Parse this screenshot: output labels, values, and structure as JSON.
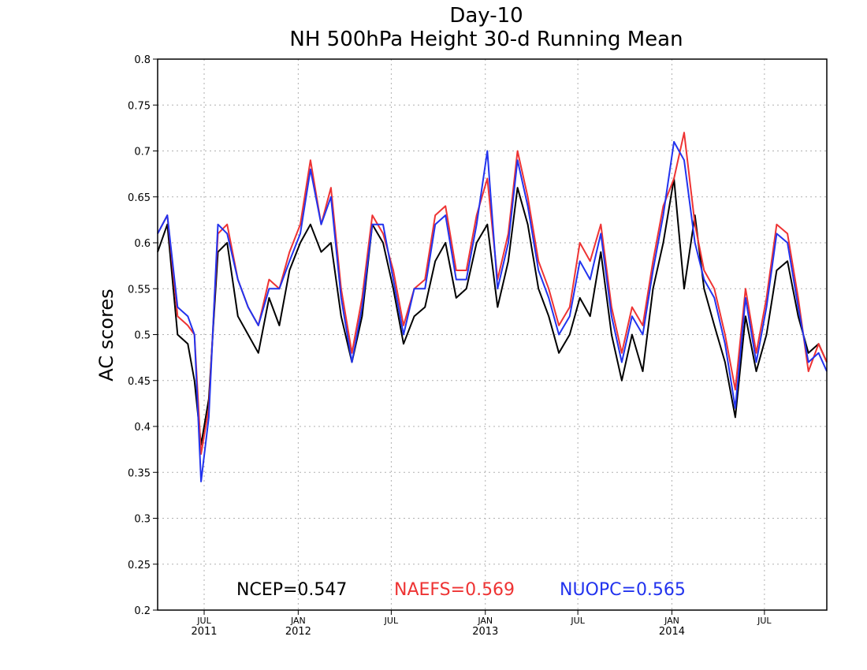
{
  "chart_data": {
    "type": "line",
    "title": "Day-10",
    "subtitle": "NH 500hPa Height 30-d Running Mean",
    "xlabel": "",
    "ylabel": "AC scores",
    "ylim": [
      0.2,
      0.8
    ],
    "yticks": [
      0.2,
      0.25,
      0.3,
      0.35,
      0.4,
      0.45,
      0.5,
      0.55,
      0.6,
      0.65,
      0.7,
      0.75,
      0.8
    ],
    "xlim": [
      "2011-04-01",
      "2014-10-31"
    ],
    "xticks": [
      {
        "date": "2011-07-01",
        "label": "JUL",
        "year": "2011"
      },
      {
        "date": "2012-01-01",
        "label": "JAN",
        "year": "2012"
      },
      {
        "date": "2012-07-01",
        "label": "JUL",
        "year": ""
      },
      {
        "date": "2013-01-01",
        "label": "JAN",
        "year": "2013"
      },
      {
        "date": "2013-07-01",
        "label": "JUL",
        "year": ""
      },
      {
        "date": "2014-01-01",
        "label": "JAN",
        "year": "2014"
      },
      {
        "date": "2014-07-01",
        "label": "JUL",
        "year": ""
      }
    ],
    "grid": true,
    "legend_position": "bottom",
    "x": [
      "2011-04-01",
      "2011-04-20",
      "2011-05-10",
      "2011-05-30",
      "2011-06-12",
      "2011-06-25",
      "2011-07-10",
      "2011-07-28",
      "2011-08-15",
      "2011-09-05",
      "2011-09-25",
      "2011-10-15",
      "2011-11-05",
      "2011-11-25",
      "2011-12-15",
      "2012-01-05",
      "2012-01-25",
      "2012-02-15",
      "2012-03-05",
      "2012-03-25",
      "2012-04-15",
      "2012-05-05",
      "2012-05-25",
      "2012-06-15",
      "2012-07-05",
      "2012-07-25",
      "2012-08-15",
      "2012-09-05",
      "2012-09-25",
      "2012-10-15",
      "2012-11-05",
      "2012-11-25",
      "2012-12-15",
      "2013-01-05",
      "2013-01-25",
      "2013-02-15",
      "2013-03-05",
      "2013-03-25",
      "2013-04-15",
      "2013-05-05",
      "2013-05-25",
      "2013-06-15",
      "2013-07-05",
      "2013-07-25",
      "2013-08-15",
      "2013-09-05",
      "2013-09-25",
      "2013-10-15",
      "2013-11-05",
      "2013-11-25",
      "2013-12-15",
      "2014-01-05",
      "2014-01-25",
      "2014-02-15",
      "2014-03-05",
      "2014-03-25",
      "2014-04-15",
      "2014-05-05",
      "2014-05-25",
      "2014-06-15",
      "2014-07-05",
      "2014-07-25",
      "2014-08-15",
      "2014-09-05",
      "2014-09-25",
      "2014-10-15",
      "2014-10-31"
    ],
    "series": [
      {
        "name": "NCEP",
        "color": "#000000",
        "mean_label": "NCEP=0.547",
        "values": [
          0.59,
          0.62,
          0.5,
          0.49,
          0.45,
          0.38,
          0.43,
          0.59,
          0.6,
          0.52,
          0.5,
          0.48,
          0.54,
          0.51,
          0.57,
          0.6,
          0.62,
          0.59,
          0.6,
          0.52,
          0.47,
          0.52,
          0.62,
          0.6,
          0.55,
          0.49,
          0.52,
          0.53,
          0.58,
          0.6,
          0.54,
          0.55,
          0.6,
          0.62,
          0.53,
          0.58,
          0.66,
          0.62,
          0.55,
          0.52,
          0.48,
          0.5,
          0.54,
          0.52,
          0.59,
          0.5,
          0.45,
          0.5,
          0.46,
          0.55,
          0.6,
          0.67,
          0.55,
          0.63,
          0.55,
          0.51,
          0.47,
          0.41,
          0.52,
          0.46,
          0.5,
          0.57,
          0.58,
          0.52,
          0.48,
          0.49,
          0.47
        ]
      },
      {
        "name": "NAEFS",
        "color": "#ee3333",
        "mean_label": "NAEFS=0.569",
        "values": [
          0.61,
          0.63,
          0.52,
          0.51,
          0.5,
          0.37,
          0.42,
          0.61,
          0.62,
          0.56,
          0.53,
          0.51,
          0.56,
          0.55,
          0.59,
          0.62,
          0.69,
          0.62,
          0.66,
          0.55,
          0.48,
          0.54,
          0.63,
          0.61,
          0.57,
          0.51,
          0.55,
          0.56,
          0.63,
          0.64,
          0.57,
          0.57,
          0.63,
          0.67,
          0.56,
          0.61,
          0.7,
          0.65,
          0.58,
          0.55,
          0.51,
          0.53,
          0.6,
          0.58,
          0.62,
          0.53,
          0.48,
          0.53,
          0.51,
          0.58,
          0.64,
          0.67,
          0.72,
          0.62,
          0.57,
          0.55,
          0.5,
          0.44,
          0.55,
          0.48,
          0.54,
          0.62,
          0.61,
          0.54,
          0.46,
          0.49,
          0.47
        ]
      },
      {
        "name": "NUOPC",
        "color": "#2233ee",
        "mean_label": "NUOPC=0.565",
        "values": [
          0.61,
          0.63,
          0.53,
          0.52,
          0.5,
          0.34,
          0.41,
          0.62,
          0.61,
          0.56,
          0.53,
          0.51,
          0.55,
          0.55,
          0.58,
          0.61,
          0.68,
          0.62,
          0.65,
          0.54,
          0.47,
          0.53,
          0.62,
          0.62,
          0.56,
          0.5,
          0.55,
          0.55,
          0.62,
          0.63,
          0.56,
          0.56,
          0.62,
          0.7,
          0.55,
          0.6,
          0.69,
          0.64,
          0.57,
          0.54,
          0.5,
          0.52,
          0.58,
          0.56,
          0.61,
          0.52,
          0.47,
          0.52,
          0.5,
          0.57,
          0.63,
          0.71,
          0.69,
          0.6,
          0.56,
          0.54,
          0.49,
          0.42,
          0.54,
          0.47,
          0.53,
          0.61,
          0.6,
          0.53,
          0.47,
          0.48,
          0.46
        ]
      }
    ]
  }
}
